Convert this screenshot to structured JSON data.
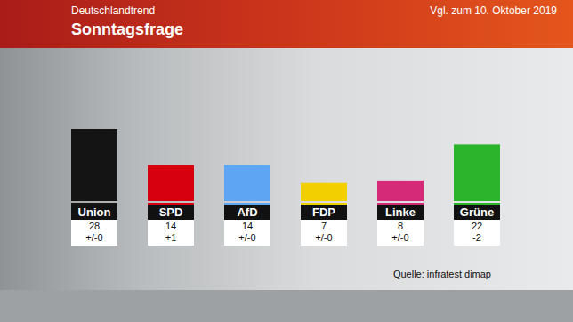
{
  "chart_data": {
    "type": "bar",
    "title": "Sonntagsfrage",
    "subtitle": "Deutschlandtrend",
    "annotations": [
      "Vgl. zum 10. Oktober 2019",
      "Quelle: infratest dimap"
    ],
    "categories": [
      "Union",
      "SPD",
      "AfD",
      "FDP",
      "Linke",
      "Grüne"
    ],
    "values": [
      28,
      14,
      14,
      7,
      8,
      22
    ],
    "change_labels": [
      "+/-0",
      "+1",
      "+/-0",
      "+/-0",
      "+/-0",
      "-2"
    ],
    "colors": [
      "#141414",
      "#d7000f",
      "#5ea6f3",
      "#f2cf00",
      "#d42a78",
      "#2db42d"
    ],
    "ylim": [
      0,
      28
    ],
    "yticks": [],
    "grid": false,
    "tick_labels": false,
    "data_labels": true
  }
}
